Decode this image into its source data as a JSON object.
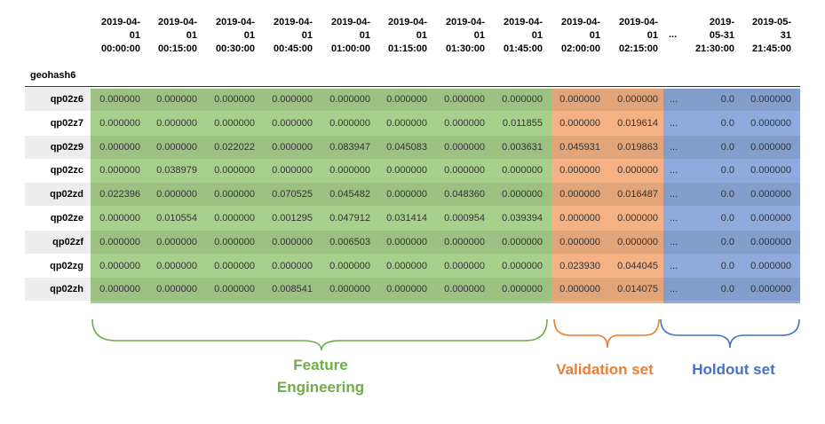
{
  "table": {
    "index_name": "geohash6",
    "columns": [
      {
        "date": "2019-04-",
        "day": "01",
        "time": "00:00:00"
      },
      {
        "date": "2019-04-",
        "day": "01",
        "time": "00:15:00"
      },
      {
        "date": "2019-04-",
        "day": "01",
        "time": "00:30:00"
      },
      {
        "date": "2019-04-",
        "day": "01",
        "time": "00:45:00"
      },
      {
        "date": "2019-04-",
        "day": "01",
        "time": "01:00:00"
      },
      {
        "date": "2019-04-",
        "day": "01",
        "time": "01:15:00"
      },
      {
        "date": "2019-04-",
        "day": "01",
        "time": "01:30:00"
      },
      {
        "date": "2019-04-",
        "day": "01",
        "time": "01:45:00"
      },
      {
        "date": "2019-04-",
        "day": "01",
        "time": "02:00:00"
      },
      {
        "date": "2019-04-",
        "day": "01",
        "time": "02:15:00"
      },
      {
        "date": "2019-",
        "day": "05-31",
        "time": "21:30:00"
      },
      {
        "date": "2019-05-",
        "day": "31",
        "time": "21:45:00"
      }
    ],
    "ellipsis": "...",
    "rows": [
      {
        "label": "qp02z6",
        "values": [
          "0.000000",
          "0.000000",
          "0.000000",
          "0.000000",
          "0.000000",
          "0.000000",
          "0.000000",
          "0.000000",
          "0.000000",
          "0.000000",
          "0.0",
          "0.000000"
        ]
      },
      {
        "label": "qp02z7",
        "values": [
          "0.000000",
          "0.000000",
          "0.000000",
          "0.000000",
          "0.000000",
          "0.000000",
          "0.000000",
          "0.011855",
          "0.000000",
          "0.019614",
          "0.0",
          "0.000000"
        ]
      },
      {
        "label": "qp02z9",
        "values": [
          "0.000000",
          "0.000000",
          "0.022022",
          "0.000000",
          "0.083947",
          "0.045083",
          "0.000000",
          "0.003631",
          "0.045931",
          "0.019863",
          "0.0",
          "0.000000"
        ]
      },
      {
        "label": "qp02zc",
        "values": [
          "0.000000",
          "0.038979",
          "0.000000",
          "0.000000",
          "0.000000",
          "0.000000",
          "0.000000",
          "0.000000",
          "0.000000",
          "0.000000",
          "0.0",
          "0.000000"
        ]
      },
      {
        "label": "qp02zd",
        "values": [
          "0.022396",
          "0.000000",
          "0.000000",
          "0.070525",
          "0.045482",
          "0.000000",
          "0.048360",
          "0.000000",
          "0.000000",
          "0.016487",
          "0.0",
          "0.000000"
        ]
      },
      {
        "label": "qp02ze",
        "values": [
          "0.000000",
          "0.010554",
          "0.000000",
          "0.001295",
          "0.047912",
          "0.031414",
          "0.000954",
          "0.039394",
          "0.000000",
          "0.000000",
          "0.0",
          "0.000000"
        ]
      },
      {
        "label": "qp02zf",
        "values": [
          "0.000000",
          "0.000000",
          "0.000000",
          "0.000000",
          "0.006503",
          "0.000000",
          "0.000000",
          "0.000000",
          "0.000000",
          "0.000000",
          "0.0",
          "0.000000"
        ]
      },
      {
        "label": "qp02zg",
        "values": [
          "0.000000",
          "0.000000",
          "0.000000",
          "0.000000",
          "0.000000",
          "0.000000",
          "0.000000",
          "0.000000",
          "0.023930",
          "0.044045",
          "0.0",
          "0.000000"
        ]
      },
      {
        "label": "qp02zh",
        "values": [
          "0.000000",
          "0.000000",
          "0.000000",
          "0.008541",
          "0.000000",
          "0.000000",
          "0.000000",
          "0.000000",
          "0.000000",
          "0.014075",
          "0.0",
          "0.000000"
        ]
      }
    ]
  },
  "groups": {
    "feature_line1": "Feature",
    "feature_line2": "Engineering",
    "validation": "Validation set",
    "holdout": "Holdout set"
  },
  "colors": {
    "feature": "#70ad47",
    "feature_bg": "#a8d08d",
    "validation": "#ed7d31",
    "validation_bg": "#f4b183",
    "holdout": "#4472c4",
    "holdout_bg": "#8faadc"
  }
}
